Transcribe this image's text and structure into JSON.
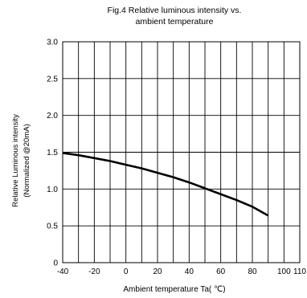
{
  "chart_data": {
    "type": "line",
    "title_lines": [
      "Fig.4 Relative luminous intensity vs.",
      "ambient temperature"
    ],
    "xlabel": "Ambient temperature Ta( ℃)",
    "ylabel_lines": [
      "Relative Luminous intensity",
      "(Normalized @20mA)"
    ],
    "xlim": [
      -40,
      110
    ],
    "ylim": [
      0,
      3.0
    ],
    "x_ticks": [
      -40,
      -20,
      0,
      20,
      40,
      60,
      80,
      100,
      110
    ],
    "x_tick_labels": [
      "-40",
      "-20",
      "0",
      "20",
      "40",
      "60",
      "80",
      "100",
      "110"
    ],
    "x_gridlines": [
      -40,
      -30,
      -20,
      -10,
      0,
      10,
      20,
      30,
      40,
      50,
      60,
      70,
      80,
      90,
      100,
      110
    ],
    "y_ticks": [
      0,
      0.5,
      1.0,
      1.5,
      2.0,
      2.5,
      3.0
    ],
    "y_tick_labels": [
      "0",
      "0.5",
      "1.0",
      "1.5",
      "2.0",
      "2.5",
      "3.0"
    ],
    "y_gridlines": [
      0,
      0.5,
      1.0,
      1.5,
      2.0,
      2.5,
      3.0
    ],
    "grid": true,
    "series": [
      {
        "x": [
          -40,
          -30,
          -20,
          -10,
          0,
          10,
          20,
          30,
          40,
          50,
          60,
          70,
          80,
          90
        ],
        "y": [
          1.49,
          1.46,
          1.42,
          1.38,
          1.33,
          1.28,
          1.22,
          1.16,
          1.09,
          1.01,
          0.93,
          0.85,
          0.76,
          0.64
        ]
      }
    ]
  }
}
